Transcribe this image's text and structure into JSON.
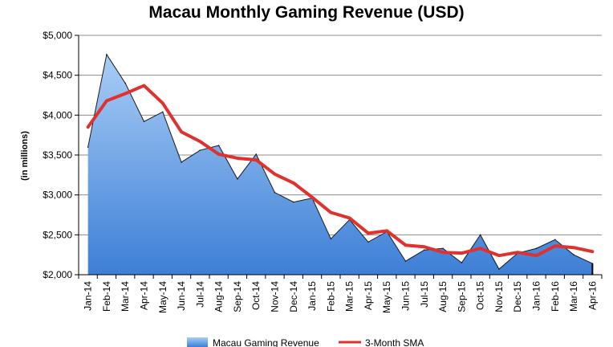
{
  "chart_data": {
    "type": "area",
    "title": "Macau Monthly Gaming Revenue (USD)",
    "xlabel": "",
    "ylabel": "(in millions)",
    "ylim": [
      2000,
      5000
    ],
    "y_ticks": [
      2000,
      2500,
      3000,
      3500,
      4000,
      4500,
      5000
    ],
    "y_tick_labels": [
      "$2,000",
      "$2,500",
      "$3,000",
      "$3,500",
      "$4,000",
      "$4,500",
      "$5,000"
    ],
    "grid": true,
    "legend_position": "bottom",
    "categories": [
      "Jan-14",
      "Feb-14",
      "Mar-14",
      "Apr-14",
      "May-14",
      "Jun-14",
      "Jul-14",
      "Aug-14",
      "Sep-14",
      "Oct-14",
      "Nov-14",
      "Dec-14",
      "Jan-15",
      "Feb-15",
      "Mar-15",
      "Apr-15",
      "May-15",
      "Jun-15",
      "Jul-15",
      "Aug-15",
      "Sep-15",
      "Oct-15",
      "Nov-15",
      "Dec-15",
      "Jan-16",
      "Feb-16",
      "Mar-16",
      "Apr-16"
    ],
    "series": [
      {
        "name": "Macau Gaming Revenue",
        "kind": "area",
        "color": "#4a86d8",
        "values": [
          3600,
          4760,
          4400,
          3920,
          4040,
          3410,
          3560,
          3620,
          3200,
          3510,
          3030,
          2910,
          2960,
          2450,
          2690,
          2410,
          2540,
          2170,
          2310,
          2330,
          2150,
          2500,
          2070,
          2270,
          2330,
          2440,
          2250,
          2140
        ]
      },
      {
        "name": "3-Month SMA",
        "kind": "line",
        "color": "#e0312e",
        "values": [
          3850,
          4180,
          4270,
          4370,
          4150,
          3790,
          3670,
          3510,
          3460,
          3440,
          3260,
          3150,
          2970,
          2780,
          2710,
          2520,
          2550,
          2370,
          2350,
          2280,
          2270,
          2330,
          2240,
          2280,
          2240,
          2360,
          2340,
          2290
        ]
      }
    ]
  }
}
